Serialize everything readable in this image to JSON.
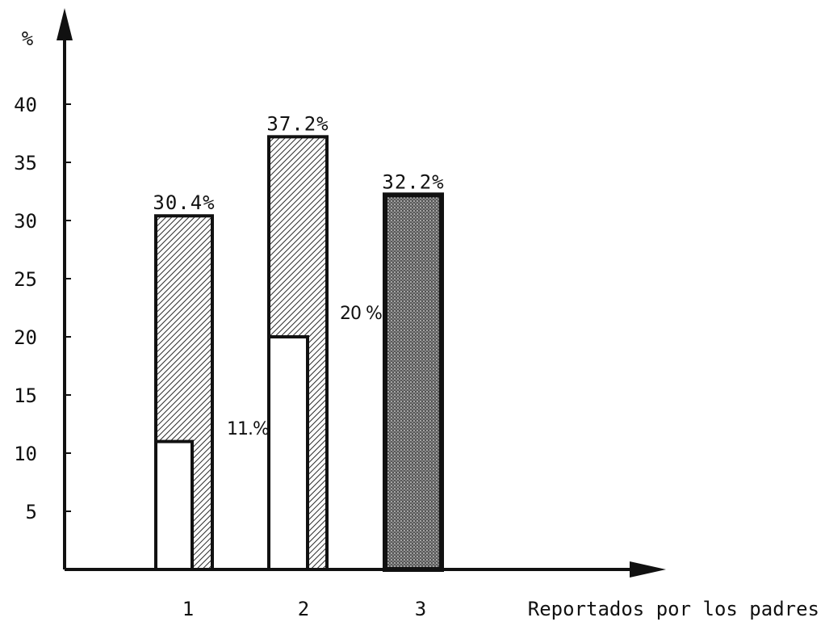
{
  "chart_data": {
    "type": "bar",
    "title": "",
    "ylabel": "%",
    "xlabel": "Reportados por los padres",
    "ylim": [
      0,
      45
    ],
    "yticks": [
      5,
      10,
      15,
      20,
      25,
      30,
      35,
      40
    ],
    "categories": [
      "1",
      "2",
      "3"
    ],
    "bars": [
      {
        "category": "1",
        "total": 30.4,
        "total_label": "30.4%",
        "sub": 11,
        "sub_label": "11.%",
        "pattern": "hatch"
      },
      {
        "category": "2",
        "total": 37.2,
        "total_label": "37.2%",
        "sub": 20,
        "sub_label": "20 %",
        "pattern": "hatch"
      },
      {
        "category": "3",
        "total": 32.2,
        "total_label": "32.2%",
        "sub": null,
        "sub_label": null,
        "pattern": "dots"
      }
    ],
    "grid": false,
    "legend": "none"
  },
  "colors": {
    "axis": "#111111",
    "ink": "#1a1a1a",
    "bar_fill_hatch": "#ffffff",
    "bar_fill_dots": "#8a8a8a"
  }
}
